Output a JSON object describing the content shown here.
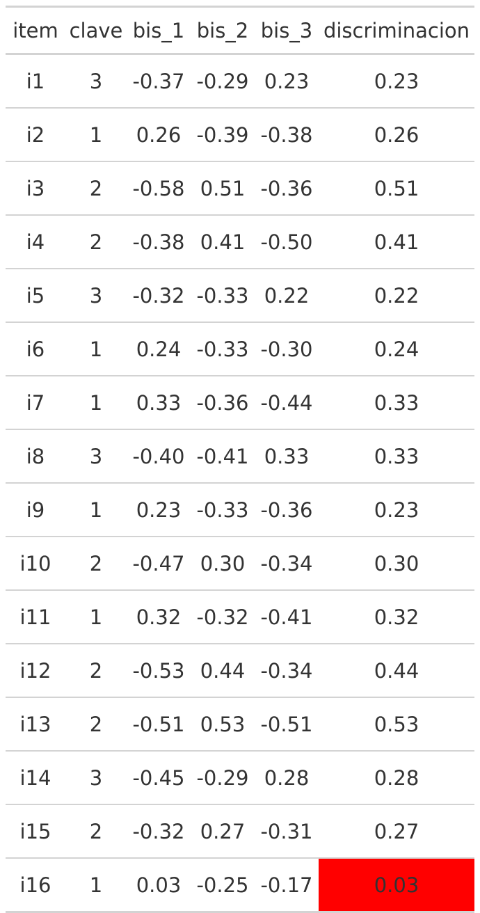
{
  "columns": [
    "item",
    "clave",
    "bis_1",
    "bis_2",
    "bis_3",
    "discriminacion"
  ],
  "rows": [
    [
      "i1",
      "3",
      "-0.37",
      "-0.29",
      "0.23",
      "0.23"
    ],
    [
      "i2",
      "1",
      "0.26",
      "-0.39",
      "-0.38",
      "0.26"
    ],
    [
      "i3",
      "2",
      "-0.58",
      "0.51",
      "-0.36",
      "0.51"
    ],
    [
      "i4",
      "2",
      "-0.38",
      "0.41",
      "-0.50",
      "0.41"
    ],
    [
      "i5",
      "3",
      "-0.32",
      "-0.33",
      "0.22",
      "0.22"
    ],
    [
      "i6",
      "1",
      "0.24",
      "-0.33",
      "-0.30",
      "0.24"
    ],
    [
      "i7",
      "1",
      "0.33",
      "-0.36",
      "-0.44",
      "0.33"
    ],
    [
      "i8",
      "3",
      "-0.40",
      "-0.41",
      "0.33",
      "0.33"
    ],
    [
      "i9",
      "1",
      "0.23",
      "-0.33",
      "-0.36",
      "0.23"
    ],
    [
      "i10",
      "2",
      "-0.47",
      "0.30",
      "-0.34",
      "0.30"
    ],
    [
      "i11",
      "1",
      "0.32",
      "-0.32",
      "-0.41",
      "0.32"
    ],
    [
      "i12",
      "2",
      "-0.53",
      "0.44",
      "-0.34",
      "0.44"
    ],
    [
      "i13",
      "2",
      "-0.51",
      "0.53",
      "-0.51",
      "0.53"
    ],
    [
      "i14",
      "3",
      "-0.45",
      "-0.29",
      "0.28",
      "0.28"
    ],
    [
      "i15",
      "2",
      "-0.32",
      "0.27",
      "-0.31",
      "0.27"
    ],
    [
      "i16",
      "1",
      "0.03",
      "-0.25",
      "-0.17",
      "0.03"
    ]
  ],
  "highlight": {
    "row": 15,
    "column": 5,
    "color": "#ff0000"
  }
}
